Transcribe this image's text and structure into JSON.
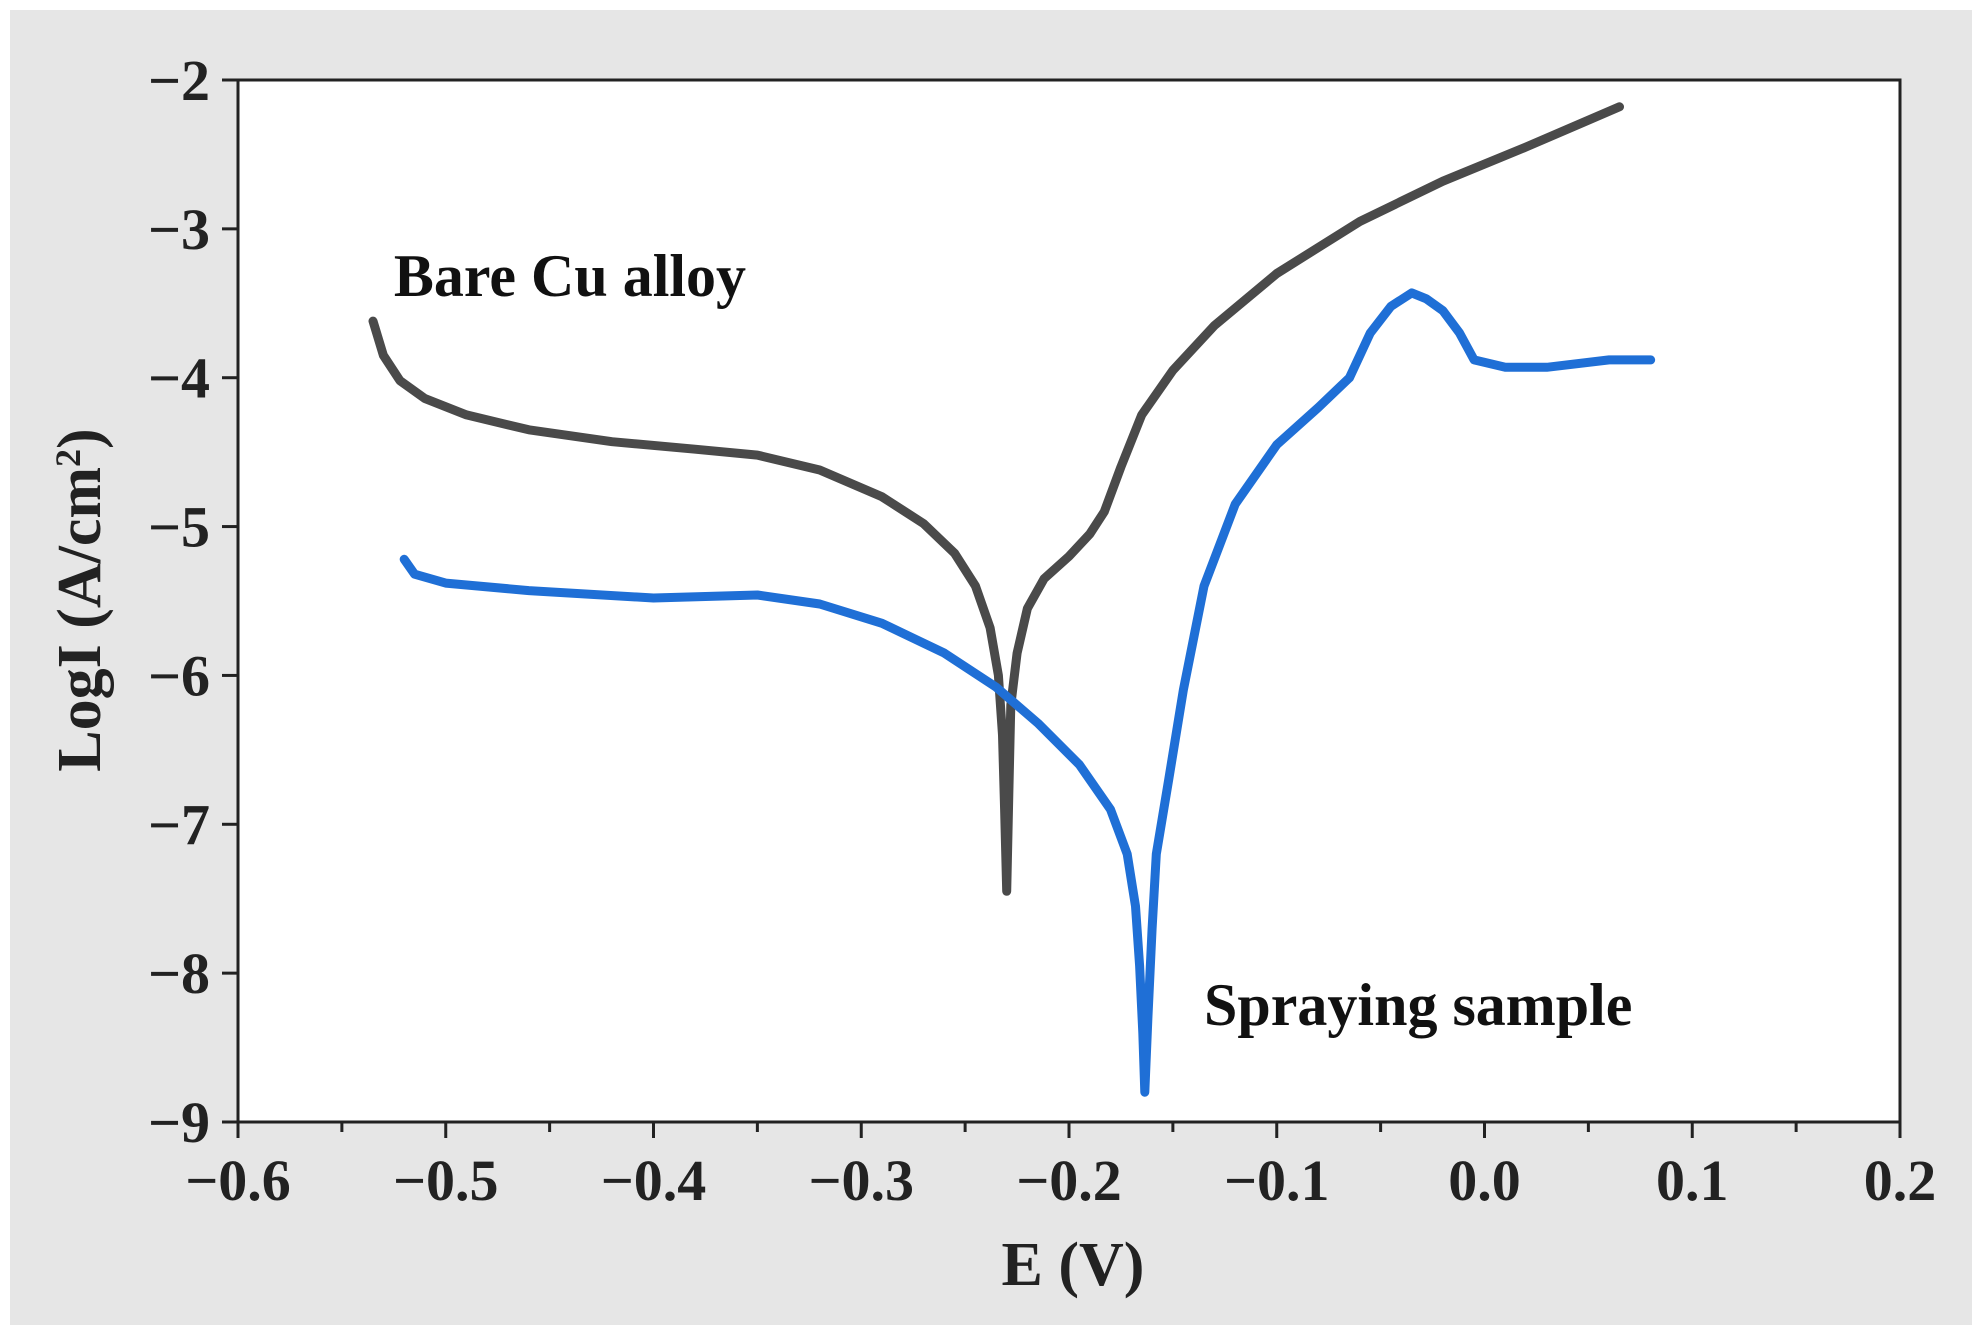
{
  "colors": {
    "background": "#e6e6e6",
    "plot_area": "#ffffff",
    "axis": "#222222"
  },
  "chart_data": {
    "type": "line",
    "title": "",
    "xlabel": "E (V)",
    "ylabel": "LogI (A/cm2)",
    "ylabel_parts": {
      "main": "LogI (A/cm",
      "sup": "2",
      "tail": ")"
    },
    "xlim": [
      -0.6,
      0.2
    ],
    "ylim": [
      -9,
      -2
    ],
    "xticks": [
      -0.6,
      -0.5,
      -0.4,
      -0.3,
      -0.2,
      -0.1,
      0.0,
      0.1,
      0.2
    ],
    "xtick_labels": [
      "−0.6",
      "−0.5",
      "−0.4",
      "−0.3",
      "−0.2",
      "−0.1",
      "0.0",
      "0.1",
      "0.2"
    ],
    "yticks": [
      -2,
      -3,
      -4,
      -5,
      -6,
      -7,
      -8,
      -9
    ],
    "ytick_labels": [
      "−2",
      "−3",
      "−4",
      "−5",
      "−6",
      "−7",
      "−8",
      "−9"
    ],
    "grid": false,
    "legend": "none",
    "series": [
      {
        "color": "#4a4a4a",
        "points": [
          [
            -0.535,
            -3.62
          ],
          [
            -0.53,
            -3.85
          ],
          [
            -0.522,
            -4.02
          ],
          [
            -0.51,
            -4.14
          ],
          [
            -0.49,
            -4.25
          ],
          [
            -0.46,
            -4.35
          ],
          [
            -0.42,
            -4.43
          ],
          [
            -0.38,
            -4.48
          ],
          [
            -0.35,
            -4.52
          ],
          [
            -0.32,
            -4.62
          ],
          [
            -0.29,
            -4.8
          ],
          [
            -0.27,
            -4.98
          ],
          [
            -0.255,
            -5.18
          ],
          [
            -0.245,
            -5.4
          ],
          [
            -0.238,
            -5.68
          ],
          [
            -0.234,
            -6.0
          ],
          [
            -0.232,
            -6.4
          ],
          [
            -0.231,
            -6.9
          ],
          [
            -0.23,
            -7.45
          ],
          [
            -0.229,
            -6.8
          ],
          [
            -0.228,
            -6.2
          ],
          [
            -0.225,
            -5.85
          ],
          [
            -0.22,
            -5.55
          ],
          [
            -0.212,
            -5.35
          ],
          [
            -0.2,
            -5.2
          ],
          [
            -0.19,
            -5.05
          ],
          [
            -0.183,
            -4.9
          ],
          [
            -0.175,
            -4.6
          ],
          [
            -0.165,
            -4.25
          ],
          [
            -0.15,
            -3.95
          ],
          [
            -0.13,
            -3.65
          ],
          [
            -0.1,
            -3.3
          ],
          [
            -0.06,
            -2.95
          ],
          [
            -0.02,
            -2.68
          ],
          [
            0.02,
            -2.45
          ],
          [
            0.065,
            -2.18
          ]
        ]
      },
      {
        "color": "#1f6fd6",
        "points": [
          [
            -0.52,
            -5.22
          ],
          [
            -0.515,
            -5.32
          ],
          [
            -0.5,
            -5.38
          ],
          [
            -0.46,
            -5.43
          ],
          [
            -0.4,
            -5.48
          ],
          [
            -0.35,
            -5.46
          ],
          [
            -0.32,
            -5.52
          ],
          [
            -0.29,
            -5.65
          ],
          [
            -0.26,
            -5.85
          ],
          [
            -0.235,
            -6.08
          ],
          [
            -0.215,
            -6.32
          ],
          [
            -0.195,
            -6.6
          ],
          [
            -0.18,
            -6.9
          ],
          [
            -0.172,
            -7.2
          ],
          [
            -0.168,
            -7.55
          ],
          [
            -0.166,
            -7.95
          ],
          [
            -0.1645,
            -8.4
          ],
          [
            -0.1635,
            -8.8
          ],
          [
            -0.162,
            -8.3
          ],
          [
            -0.16,
            -7.7
          ],
          [
            -0.158,
            -7.2
          ],
          [
            -0.152,
            -6.7
          ],
          [
            -0.145,
            -6.1
          ],
          [
            -0.135,
            -5.4
          ],
          [
            -0.12,
            -4.85
          ],
          [
            -0.1,
            -4.45
          ],
          [
            -0.08,
            -4.2
          ],
          [
            -0.065,
            -4.0
          ],
          [
            -0.055,
            -3.7
          ],
          [
            -0.045,
            -3.52
          ],
          [
            -0.035,
            -3.43
          ],
          [
            -0.028,
            -3.47
          ],
          [
            -0.02,
            -3.55
          ],
          [
            -0.012,
            -3.7
          ],
          [
            -0.005,
            -3.88
          ],
          [
            0.01,
            -3.93
          ],
          [
            0.03,
            -3.93
          ],
          [
            0.06,
            -3.88
          ],
          [
            0.08,
            -3.88
          ]
        ]
      }
    ],
    "annotations": [
      {
        "text": "Bare Cu alloy",
        "x": -0.525,
        "y": -3.45
      },
      {
        "text": "Spraying sample",
        "x": -0.135,
        "y": -8.35
      }
    ]
  }
}
